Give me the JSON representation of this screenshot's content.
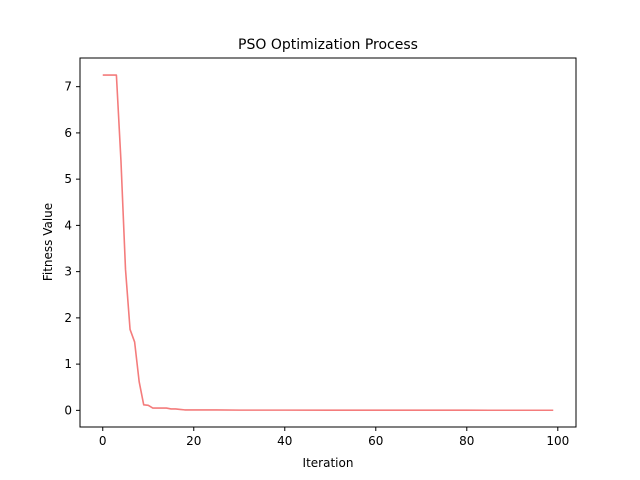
{
  "chart_data": {
    "type": "line",
    "title": "PSO Optimization Process",
    "xlabel": "Iteration",
    "ylabel": "Fitness Value",
    "xlim": [
      -5,
      104
    ],
    "ylim": [
      -0.36,
      7.62
    ],
    "xticks": [
      0,
      20,
      40,
      60,
      80,
      100
    ],
    "yticks": [
      0,
      1,
      2,
      3,
      4,
      5,
      6,
      7
    ],
    "grid": false,
    "series": [
      {
        "color": "#f47c7c",
        "x": [
          0,
          1,
          2,
          3,
          4,
          5,
          6,
          7,
          8,
          9,
          10,
          11,
          12,
          13,
          14,
          15,
          16,
          17,
          18,
          19,
          20,
          25,
          30,
          40,
          50,
          60,
          70,
          80,
          85,
          90,
          95,
          99
        ],
        "y": [
          7.25,
          7.25,
          7.25,
          7.25,
          5.4,
          3.05,
          1.75,
          1.48,
          0.62,
          0.12,
          0.11,
          0.05,
          0.05,
          0.05,
          0.05,
          0.03,
          0.03,
          0.02,
          0.01,
          0.01,
          0.01,
          0.01,
          0.005,
          0.005,
          0.003,
          0.003,
          0.003,
          0.003,
          0.002,
          0.002,
          0.002,
          0.002
        ]
      }
    ]
  }
}
